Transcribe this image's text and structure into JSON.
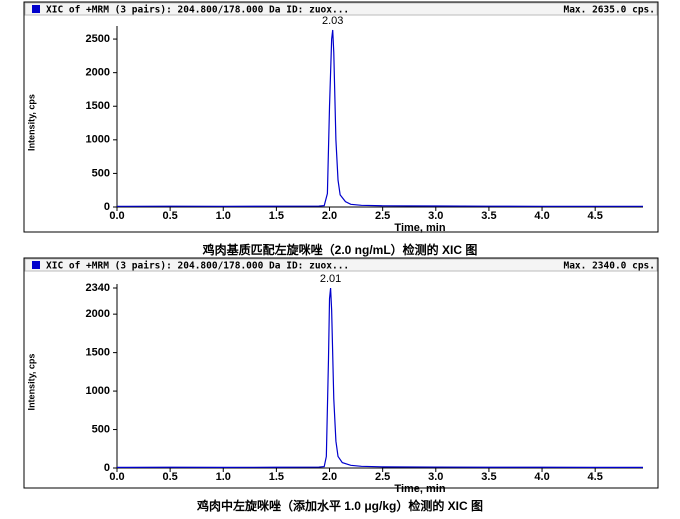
{
  "chart_data": [
    {
      "type": "line",
      "header": "XIC of +MRM (3 pairs): 204.800/178.000 Da ID: zuox...",
      "max_label": "Max. 2635.0 cps.",
      "peak_label": "2.03",
      "x_label": "Time, min",
      "y_label": "Intensity, cps",
      "caption": "鸡肉基质匹配左旋咪唑（2.0 ng/mL）检测的 XIC 图",
      "color": "#0000cc",
      "x": [
        0,
        0.5,
        1.0,
        1.5,
        1.9,
        1.95,
        1.98,
        2.0,
        2.02,
        2.03,
        2.04,
        2.06,
        2.08,
        2.1,
        2.15,
        2.2,
        2.3,
        2.5,
        3.0,
        3.5,
        4.0,
        4.5,
        4.95
      ],
      "values": [
        10,
        12,
        10,
        12,
        14,
        20,
        200,
        1500,
        2500,
        2635,
        2300,
        1000,
        400,
        180,
        80,
        40,
        25,
        18,
        15,
        12,
        10,
        10,
        10
      ],
      "xlim": [
        0,
        4.95
      ],
      "ylim": [
        0,
        2635
      ],
      "xticks": [
        {
          "value": 0,
          "label": "0.0"
        },
        0.5,
        {
          "value": 1,
          "label": "1.0"
        },
        1.5,
        {
          "value": 2,
          "label": "2.0"
        },
        2.5,
        {
          "value": 3,
          "label": "3.0"
        },
        3.5,
        {
          "value": 4,
          "label": "4.0"
        },
        4.5
      ],
      "yticks": [
        0,
        500,
        1000,
        1500,
        2000,
        2500
      ]
    },
    {
      "type": "line",
      "header": "XIC of +MRM (3 pairs): 204.800/178.000 Da ID: zuox...",
      "max_label": "Max. 2340.0 cps.",
      "peak_label": "2.01",
      "x_label": "Time, min",
      "y_label": "Intensity, cps",
      "caption": "鸡肉中左旋咪唑（添加水平 1.0 μg/kg）检测的 XIC 图",
      "color": "#0000cc",
      "x": [
        0,
        0.5,
        1.0,
        1.5,
        1.9,
        1.95,
        1.97,
        1.99,
        2.0,
        2.01,
        2.02,
        2.04,
        2.06,
        2.08,
        2.12,
        2.2,
        2.3,
        2.5,
        3.0,
        3.5,
        4.0,
        4.5,
        4.95
      ],
      "values": [
        8,
        10,
        8,
        10,
        12,
        18,
        150,
        1400,
        2200,
        2340,
        2050,
        900,
        350,
        150,
        70,
        35,
        22,
        15,
        12,
        10,
        10,
        8,
        8
      ],
      "xlim": [
        0,
        4.95
      ],
      "ylim": [
        0,
        2340
      ],
      "xticks": [
        {
          "value": 0,
          "label": "0.0"
        },
        0.5,
        {
          "value": 1,
          "label": "1.0"
        },
        1.5,
        {
          "value": 2,
          "label": "2.0"
        },
        2.5,
        {
          "value": 3,
          "label": "3.0"
        },
        3.5,
        {
          "value": 4,
          "label": "4.0"
        },
        4.5
      ],
      "yticks": [
        0,
        500,
        1000,
        1500,
        2000,
        2340
      ]
    }
  ]
}
